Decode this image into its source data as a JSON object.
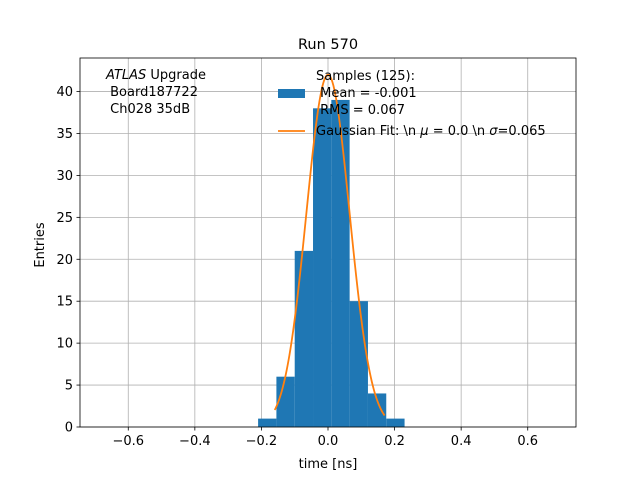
{
  "chart_data": {
    "type": "bar",
    "title": "Run 570",
    "xlabel": "time [ns]",
    "ylabel": "Entries",
    "xlim": [
      -0.745,
      0.745
    ],
    "ylim": [
      0,
      44
    ],
    "grid": true,
    "legend_position": "top-right",
    "x_ticks": [
      -0.6,
      -0.4,
      -0.2,
      0.0,
      0.2,
      0.4,
      0.6
    ],
    "x_tick_labels": [
      "−0.6",
      "−0.4",
      "−0.2",
      "0.0",
      "0.2",
      "0.4",
      "0.6"
    ],
    "y_ticks": [
      0,
      5,
      10,
      15,
      20,
      25,
      30,
      35,
      40
    ],
    "y_tick_labels": [
      "0",
      "5",
      "10",
      "15",
      "20",
      "25",
      "30",
      "35",
      "40"
    ],
    "histogram": {
      "bin_edges": [
        -0.21,
        -0.1555,
        -0.101,
        -0.0465,
        0.008,
        0.0625,
        0.117,
        0.1715,
        0.226
      ],
      "bin_width_note": "",
      "bars": [
        {
          "x_left": -0.21,
          "x_right": -0.1555,
          "value": 1
        },
        {
          "x_left": -0.1555,
          "x_right": -0.101,
          "value": 6
        },
        {
          "x_left": -0.101,
          "x_right": -0.0465,
          "value": 21
        },
        {
          "x_left": -0.0465,
          "x_right": 0.008,
          "value": 38
        },
        {
          "x_left": 0.008,
          "x_right": 0.0625,
          "value": 39
        },
        {
          "x_left": 0.0625,
          "x_right": 0.117,
          "value": 15
        },
        {
          "x_left": 0.117,
          "x_right": 0.1715,
          "value": 4
        },
        {
          "x_left": 0.1715,
          "x_right": 0.226,
          "value": 1
        }
      ],
      "bars_refined": [
        {
          "x_left": -0.21,
          "x_right": -0.155,
          "value": 1
        },
        {
          "x_left": -0.155,
          "x_right": -0.1,
          "value": 6
        },
        {
          "x_left": -0.1,
          "x_right": -0.045,
          "value": 21
        },
        {
          "x_left": -0.045,
          "x_right": 0.01,
          "value": 38
        },
        {
          "x_left": 0.01,
          "x_right": 0.065,
          "value": 39
        },
        {
          "x_left": 0.065,
          "x_right": 0.12,
          "value": 15
        },
        {
          "x_left": 0.12,
          "x_right": 0.175,
          "value": 4
        },
        {
          "x_left": 0.175,
          "x_right": 0.23,
          "value": 1
        }
      ],
      "color": "#1f77b4"
    },
    "fit": {
      "mu": 0.0,
      "sigma": 0.065,
      "amplitude": 42,
      "x_range": [
        -0.16,
        0.17
      ],
      "color": "#ff7f0e"
    },
    "series": [
      {
        "name": "Samples (125):\n Mean = -0.001\n RMS = 0.067",
        "kind": "histogram"
      },
      {
        "name": "Gaussian Fit: \\n μ = 0.0 \\n σ=0.065",
        "kind": "line"
      }
    ]
  },
  "annotation": {
    "line1_italic": "ATLAS",
    "line1_rest": " Upgrade",
    "line2": " Board187722",
    "line3": " Ch028 35dB"
  },
  "legend": {
    "hist_lines": [
      "Samples (125):",
      " Mean = -0.001",
      " RMS = 0.067"
    ],
    "fit_prefix": "Gaussian Fit: \\n ",
    "fit_mu_symbol": "μ",
    "fit_mid": " = 0.0 \\n ",
    "fit_sigma_symbol": "σ",
    "fit_suffix": "=0.065"
  },
  "colors": {
    "bar": "#1f77b4",
    "fit": "#ff7f0e",
    "grid": "#b0b0b0",
    "axis": "#000000"
  }
}
